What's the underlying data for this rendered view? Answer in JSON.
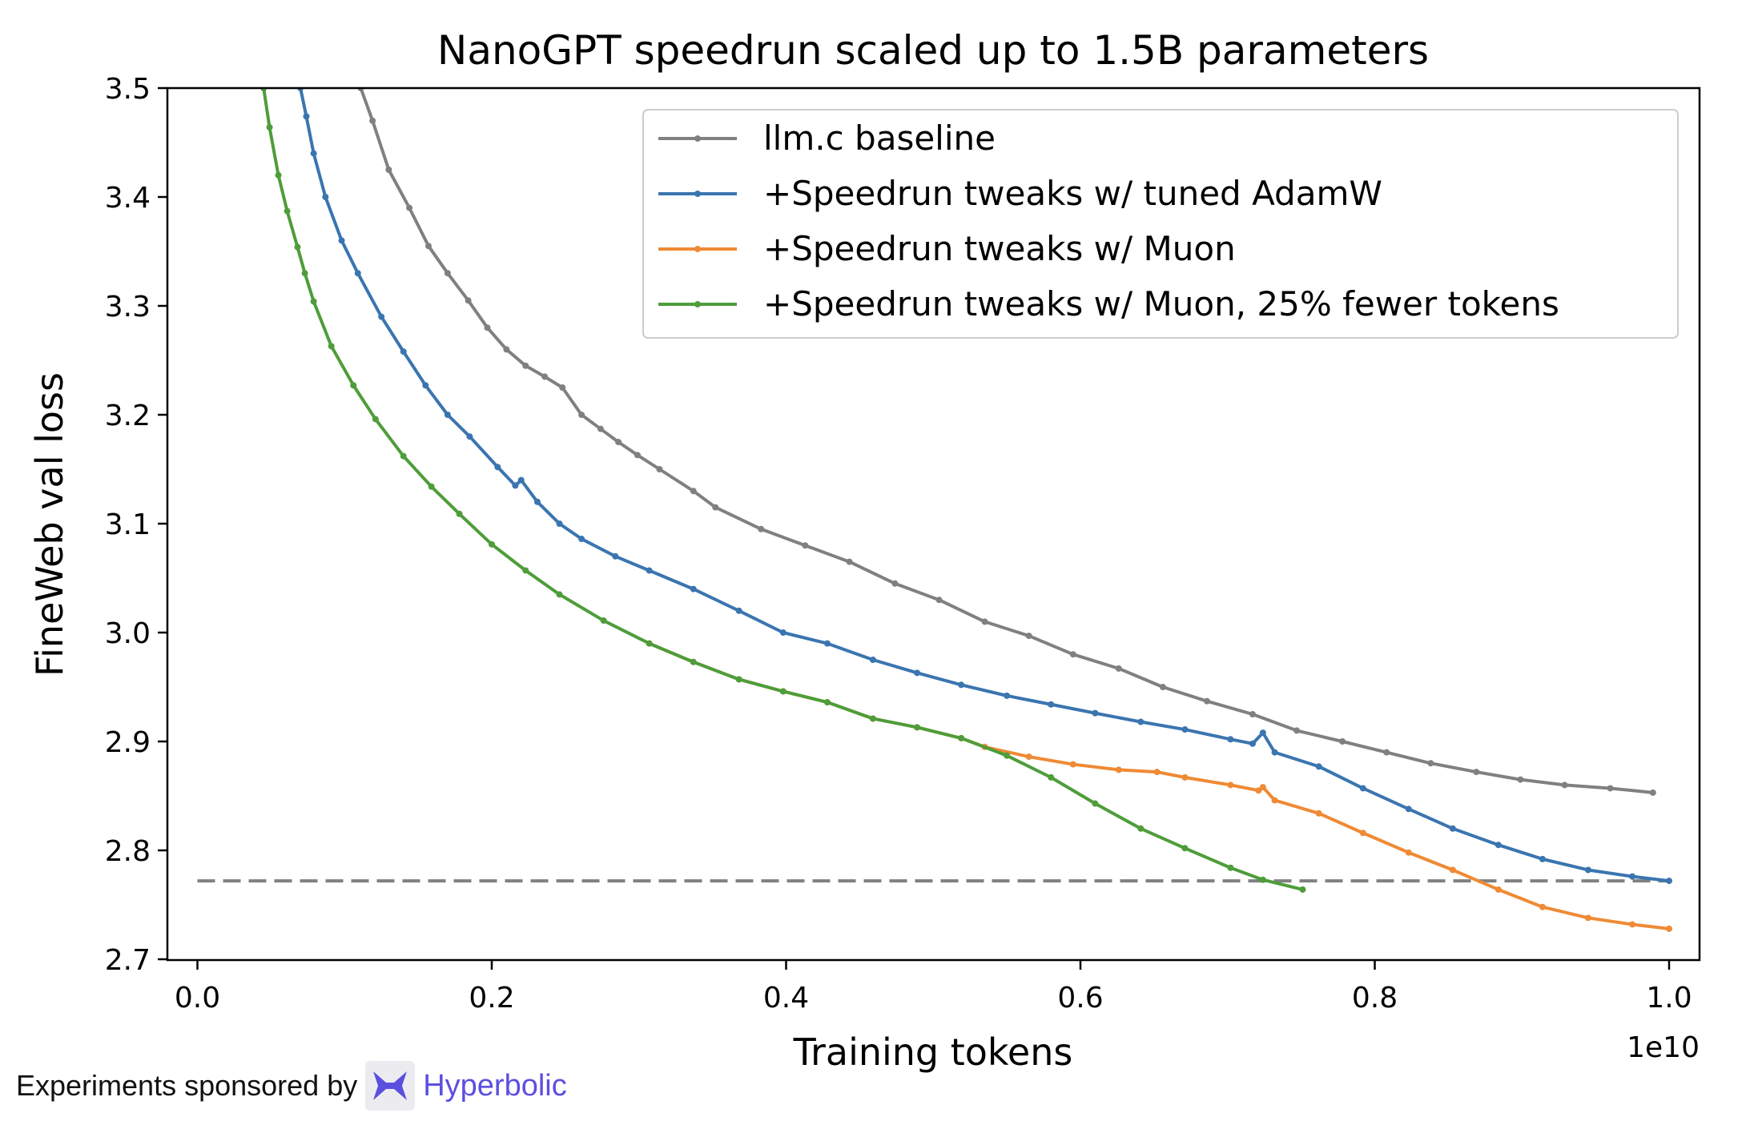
{
  "chart_data": {
    "type": "line",
    "title": "NanoGPT speedrun scaled up to 1.5B parameters",
    "xlabel": "Training tokens",
    "ylabel": "FineWeb val loss",
    "x_offset_label": "1e10",
    "xlim": [
      -0.02,
      1.02
    ],
    "ylim": [
      2.7,
      3.5
    ],
    "xticks": [
      "0.0",
      "0.2",
      "0.4",
      "0.6",
      "0.8",
      "1.0"
    ],
    "yticks": [
      "2.7",
      "2.8",
      "2.9",
      "3.0",
      "3.1",
      "3.2",
      "3.3",
      "3.4",
      "3.5"
    ],
    "grid": false,
    "legend_position": "top-right",
    "reference_line": {
      "y": 2.772,
      "style": "dashed",
      "color": "#808080"
    },
    "series": [
      {
        "name": "llm.c baseline",
        "color": "#808080",
        "x": [
          0.111,
          0.119,
          0.13,
          0.144,
          0.157,
          0.17,
          0.184,
          0.197,
          0.21,
          0.223,
          0.236,
          0.248,
          0.261,
          0.274,
          0.286,
          0.299,
          0.314,
          0.337,
          0.352,
          0.383,
          0.413,
          0.443,
          0.474,
          0.504,
          0.535,
          0.565,
          0.595,
          0.626,
          0.656,
          0.686,
          0.717,
          0.747,
          0.778,
          0.808,
          0.838,
          0.869,
          0.899,
          0.929,
          0.96,
          0.989
        ],
        "y": [
          3.5,
          3.47,
          3.425,
          3.39,
          3.355,
          3.33,
          3.305,
          3.28,
          3.26,
          3.245,
          3.235,
          3.225,
          3.2,
          3.187,
          3.175,
          3.163,
          3.15,
          3.13,
          3.115,
          3.095,
          3.08,
          3.065,
          3.045,
          3.03,
          3.01,
          2.997,
          2.98,
          2.967,
          2.95,
          2.937,
          2.925,
          2.91,
          2.9,
          2.89,
          2.88,
          2.872,
          2.865,
          2.86,
          2.857,
          2.853
        ]
      },
      {
        "name": "+Speedrun tweaks w/ tuned AdamW",
        "color": "#3a75b0",
        "x": [
          0.07,
          0.074,
          0.079,
          0.087,
          0.098,
          0.109,
          0.125,
          0.14,
          0.155,
          0.17,
          0.185,
          0.204,
          0.216,
          0.22,
          0.231,
          0.246,
          0.261,
          0.284,
          0.307,
          0.337,
          0.368,
          0.398,
          0.428,
          0.459,
          0.489,
          0.519,
          0.55,
          0.58,
          0.61,
          0.641,
          0.671,
          0.702,
          0.717,
          0.724,
          0.732,
          0.762,
          0.792,
          0.823,
          0.853,
          0.884,
          0.914,
          0.945,
          0.975,
          1.0
        ],
        "y": [
          3.5,
          3.474,
          3.44,
          3.4,
          3.36,
          3.33,
          3.29,
          3.258,
          3.227,
          3.2,
          3.18,
          3.152,
          3.135,
          3.14,
          3.12,
          3.1,
          3.086,
          3.07,
          3.057,
          3.04,
          3.02,
          3.0,
          2.99,
          2.975,
          2.963,
          2.952,
          2.942,
          2.934,
          2.926,
          2.918,
          2.911,
          2.902,
          2.898,
          2.908,
          2.89,
          2.877,
          2.857,
          2.838,
          2.82,
          2.805,
          2.792,
          2.782,
          2.776,
          2.772
        ]
      },
      {
        "name": "+Speedrun tweaks w/ Muon",
        "color": "#ef8a35",
        "x": [
          0.307,
          0.337,
          0.368,
          0.398,
          0.428,
          0.459,
          0.489,
          0.519,
          0.535,
          0.565,
          0.595,
          0.626,
          0.652,
          0.671,
          0.702,
          0.721,
          0.724,
          0.732,
          0.762,
          0.792,
          0.823,
          0.853,
          0.884,
          0.914,
          0.945,
          0.975,
          1.0
        ],
        "y": [
          2.99,
          2.973,
          2.957,
          2.946,
          2.936,
          2.921,
          2.913,
          2.903,
          2.895,
          2.886,
          2.879,
          2.874,
          2.872,
          2.867,
          2.86,
          2.855,
          2.858,
          2.846,
          2.834,
          2.816,
          2.798,
          2.782,
          2.764,
          2.748,
          2.738,
          2.732,
          2.728
        ]
      },
      {
        "name": "+Speedrun tweaks w/ Muon, 25% fewer tokens",
        "color": "#4e9d3a",
        "x": [
          0.045,
          0.049,
          0.055,
          0.061,
          0.068,
          0.073,
          0.079,
          0.091,
          0.106,
          0.121,
          0.14,
          0.159,
          0.178,
          0.2,
          0.223,
          0.246,
          0.276,
          0.307,
          0.337,
          0.368,
          0.398,
          0.428,
          0.459,
          0.489,
          0.519,
          0.55,
          0.58,
          0.61,
          0.641,
          0.671,
          0.702,
          0.724,
          0.751
        ],
        "y": [
          3.5,
          3.464,
          3.42,
          3.387,
          3.354,
          3.33,
          3.304,
          3.263,
          3.227,
          3.196,
          3.162,
          3.134,
          3.109,
          3.081,
          3.057,
          3.035,
          3.011,
          2.99,
          2.973,
          2.957,
          2.946,
          2.936,
          2.921,
          2.913,
          2.903,
          2.887,
          2.867,
          2.843,
          2.82,
          2.802,
          2.784,
          2.773,
          2.764
        ]
      }
    ]
  },
  "footer": {
    "sponsor_text": "Experiments sponsored by",
    "sponsor_brand": "Hyperbolic",
    "sponsor_icon": "hyperbolic-logo-icon"
  }
}
